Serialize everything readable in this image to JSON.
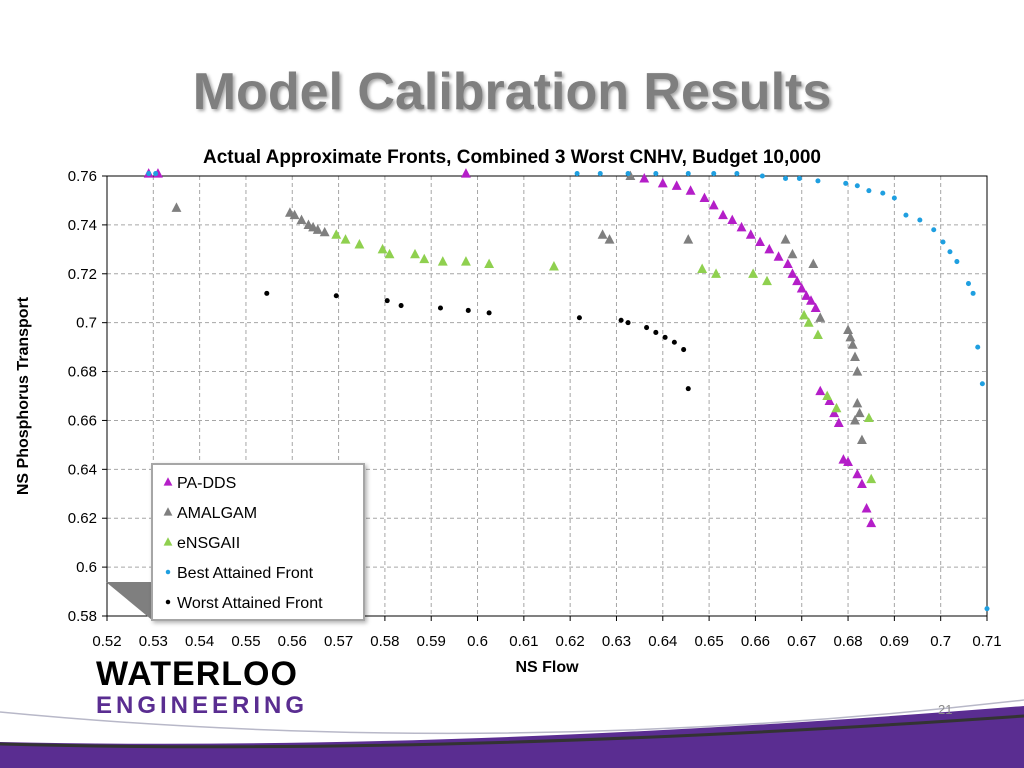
{
  "slide": {
    "title": "Model Calibration Results",
    "page_number": "21",
    "logo": {
      "line1": "WATERLOO",
      "line2": "ENGINEERING"
    }
  },
  "colors": {
    "title": "#7f7f7f",
    "pa_dds": "#b41ec8",
    "amalgam": "#7f7f7f",
    "ensgaii": "#8fd04f",
    "best": "#1f9fe0",
    "worst": "#000000",
    "brand_purple": "#5a2d91"
  },
  "chart_data": {
    "type": "scatter",
    "title": "Actual Approximate Fronts, Combined 3 Worst CNHV, Budget 10,000",
    "xlabel": "NS Flow",
    "ylabel": "NS Phosphorus Transport",
    "xlim": [
      0.52,
      0.71
    ],
    "ylim": [
      0.58,
      0.76
    ],
    "xticks": [
      "0.52",
      "0.53",
      "0.54",
      "0.55",
      "0.56",
      "0.57",
      "0.58",
      "0.59",
      "0.6",
      "0.61",
      "0.62",
      "0.63",
      "0.64",
      "0.65",
      "0.66",
      "0.67",
      "0.68",
      "0.69",
      "0.7",
      "0.71"
    ],
    "yticks": [
      "0.58",
      "0.6",
      "0.62",
      "0.64",
      "0.66",
      "0.68",
      "0.7",
      "0.72",
      "0.74",
      "0.76"
    ],
    "grid": true,
    "legend_position": "lower-left",
    "series": [
      {
        "name": "PA-DDS",
        "marker": "triangle",
        "color": "#b41ec8",
        "x": [
          0.529,
          0.531,
          0.5975,
          0.636,
          0.64,
          0.643,
          0.646,
          0.649,
          0.651,
          0.653,
          0.655,
          0.657,
          0.659,
          0.661,
          0.663,
          0.665,
          0.667,
          0.668,
          0.669,
          0.67,
          0.671,
          0.672,
          0.673,
          0.674,
          0.676,
          0.677,
          0.678,
          0.679,
          0.68,
          0.682,
          0.683,
          0.684,
          0.685
        ],
        "y": [
          0.761,
          0.761,
          0.761,
          0.759,
          0.757,
          0.756,
          0.754,
          0.751,
          0.748,
          0.744,
          0.742,
          0.739,
          0.736,
          0.733,
          0.73,
          0.727,
          0.724,
          0.72,
          0.717,
          0.714,
          0.711,
          0.709,
          0.706,
          0.672,
          0.668,
          0.663,
          0.659,
          0.644,
          0.643,
          0.638,
          0.634,
          0.624,
          0.618
        ]
      },
      {
        "name": "AMALGAM",
        "marker": "triangle",
        "color": "#7f7f7f",
        "x": [
          0.535,
          0.5595,
          0.5605,
          0.562,
          0.5635,
          0.5645,
          0.5655,
          0.567,
          0.627,
          0.6285,
          0.633,
          0.6455,
          0.6665,
          0.668,
          0.6725,
          0.674,
          0.68,
          0.6805,
          0.681,
          0.6815,
          0.682,
          0.6825,
          0.683,
          0.682,
          0.6815
        ],
        "y": [
          0.747,
          0.745,
          0.744,
          0.742,
          0.74,
          0.739,
          0.738,
          0.737,
          0.736,
          0.734,
          0.76,
          0.734,
          0.734,
          0.728,
          0.724,
          0.702,
          0.697,
          0.694,
          0.691,
          0.686,
          0.68,
          0.663,
          0.652,
          0.667,
          0.66
        ]
      },
      {
        "name": "eNSGAII",
        "marker": "triangle",
        "color": "#8fd04f",
        "x": [
          0.5695,
          0.5715,
          0.5745,
          0.5795,
          0.581,
          0.5865,
          0.5885,
          0.5925,
          0.5975,
          0.6025,
          0.6165,
          0.6485,
          0.6515,
          0.6595,
          0.6625,
          0.6705,
          0.6715,
          0.6735,
          0.6755,
          0.6775,
          0.6845,
          0.685
        ],
        "y": [
          0.736,
          0.734,
          0.732,
          0.73,
          0.728,
          0.728,
          0.726,
          0.725,
          0.725,
          0.724,
          0.723,
          0.722,
          0.72,
          0.72,
          0.717,
          0.703,
          0.7,
          0.695,
          0.67,
          0.665,
          0.661,
          0.636
        ]
      },
      {
        "name": "Best Attained Front",
        "marker": "circle",
        "color": "#1f9fe0",
        "x": [
          0.529,
          0.5305,
          0.6215,
          0.6265,
          0.6325,
          0.6385,
          0.6455,
          0.651,
          0.656,
          0.6615,
          0.6665,
          0.6695,
          0.6735,
          0.6795,
          0.682,
          0.6845,
          0.6875,
          0.69,
          0.6925,
          0.6955,
          0.6985,
          0.7005,
          0.702,
          0.7035,
          0.706,
          0.707,
          0.708,
          0.709,
          0.71
        ],
        "y": [
          0.761,
          0.761,
          0.761,
          0.761,
          0.761,
          0.761,
          0.761,
          0.761,
          0.761,
          0.76,
          0.759,
          0.759,
          0.758,
          0.757,
          0.756,
          0.754,
          0.753,
          0.751,
          0.744,
          0.742,
          0.738,
          0.733,
          0.729,
          0.725,
          0.716,
          0.712,
          0.69,
          0.675,
          0.583
        ]
      },
      {
        "name": "Worst Attained Front",
        "marker": "circle",
        "color": "#000000",
        "x": [
          0.5545,
          0.5695,
          0.5805,
          0.5835,
          0.592,
          0.598,
          0.6025,
          0.622,
          0.631,
          0.6325,
          0.6365,
          0.6385,
          0.6405,
          0.6425,
          0.6445,
          0.6455
        ],
        "y": [
          0.712,
          0.711,
          0.709,
          0.707,
          0.706,
          0.705,
          0.704,
          0.702,
          0.701,
          0.7,
          0.698,
          0.696,
          0.694,
          0.692,
          0.689,
          0.673
        ]
      }
    ]
  }
}
